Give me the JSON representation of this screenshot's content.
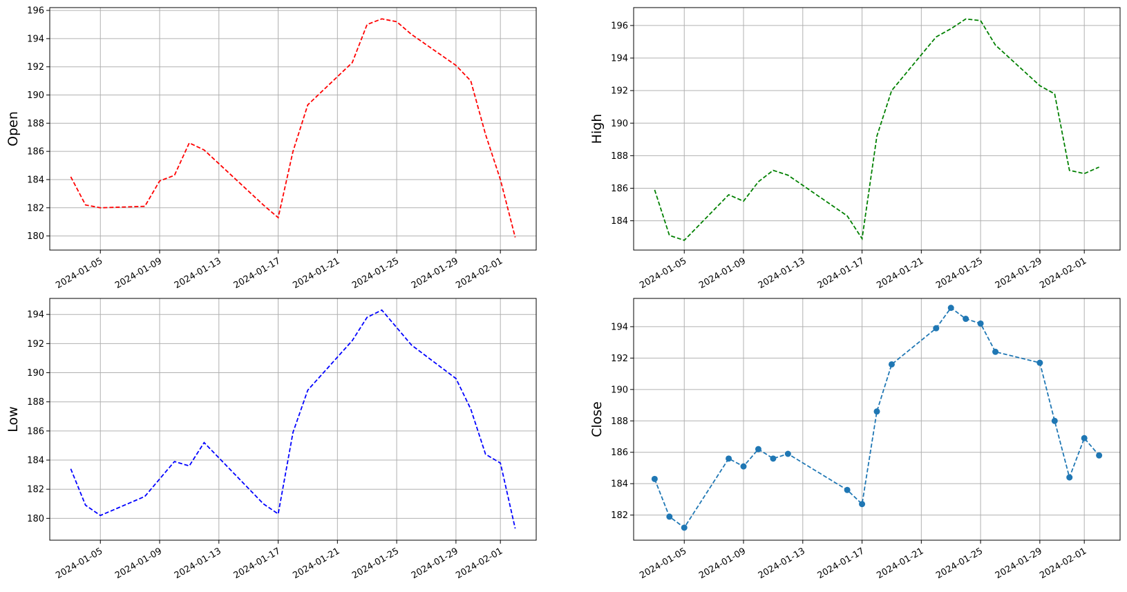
{
  "chart_data": [
    {
      "type": "line",
      "ylabel": "Open",
      "xlabel": "",
      "grid": true,
      "ylim": [
        179,
        196.2
      ],
      "yticks": [
        180,
        182,
        184,
        186,
        188,
        190,
        192,
        194,
        196
      ],
      "xticks": [
        "2024-01-05",
        "2024-01-09",
        "2024-01-13",
        "2024-01-17",
        "2024-01-21",
        "2024-01-25",
        "2024-01-29",
        "2024-02-01"
      ],
      "series": [
        {
          "color": "#ff0000",
          "linestyle": "dashed",
          "marker": "none",
          "x": [
            "2024-01-03",
            "2024-01-04",
            "2024-01-05",
            "2024-01-08",
            "2024-01-09",
            "2024-01-10",
            "2024-01-11",
            "2024-01-12",
            "2024-01-16",
            "2024-01-17",
            "2024-01-18",
            "2024-01-19",
            "2024-01-22",
            "2024-01-23",
            "2024-01-24",
            "2024-01-25",
            "2024-01-26",
            "2024-01-29",
            "2024-01-30",
            "2024-01-31",
            "2024-02-01",
            "2024-02-02"
          ],
          "y": [
            184.2,
            182.2,
            182.0,
            182.1,
            183.9,
            184.3,
            186.6,
            186.1,
            182.2,
            181.3,
            186.0,
            189.3,
            192.3,
            195.0,
            195.4,
            195.2,
            194.3,
            192.1,
            191.0,
            187.2,
            184.0,
            179.9
          ]
        }
      ]
    },
    {
      "type": "line",
      "ylabel": "High",
      "xlabel": "",
      "grid": true,
      "ylim": [
        182.2,
        197.1
      ],
      "yticks": [
        184,
        186,
        188,
        190,
        192,
        194,
        196
      ],
      "xticks": [
        "2024-01-05",
        "2024-01-09",
        "2024-01-13",
        "2024-01-17",
        "2024-01-21",
        "2024-01-25",
        "2024-01-29",
        "2024-02-01"
      ],
      "series": [
        {
          "color": "#008000",
          "linestyle": "dashed",
          "marker": "none",
          "x": [
            "2024-01-03",
            "2024-01-04",
            "2024-01-05",
            "2024-01-08",
            "2024-01-09",
            "2024-01-10",
            "2024-01-11",
            "2024-01-12",
            "2024-01-16",
            "2024-01-17",
            "2024-01-18",
            "2024-01-19",
            "2024-01-22",
            "2024-01-23",
            "2024-01-24",
            "2024-01-25",
            "2024-01-26",
            "2024-01-29",
            "2024-01-30",
            "2024-01-31",
            "2024-02-01",
            "2024-02-02"
          ],
          "y": [
            185.9,
            183.1,
            182.8,
            185.6,
            185.2,
            186.4,
            187.1,
            186.8,
            184.3,
            182.9,
            189.2,
            192.0,
            195.3,
            195.8,
            196.4,
            196.3,
            194.8,
            192.3,
            191.8,
            187.1,
            186.9,
            187.3
          ]
        }
      ]
    },
    {
      "type": "line",
      "ylabel": "Low",
      "xlabel": "",
      "grid": true,
      "ylim": [
        178.5,
        195.1
      ],
      "yticks": [
        180,
        182,
        184,
        186,
        188,
        190,
        192,
        194
      ],
      "xticks": [
        "2024-01-05",
        "2024-01-09",
        "2024-01-13",
        "2024-01-17",
        "2024-01-21",
        "2024-01-25",
        "2024-01-29",
        "2024-02-01"
      ],
      "series": [
        {
          "color": "#0000ff",
          "linestyle": "dashed",
          "marker": "none",
          "x": [
            "2024-01-03",
            "2024-01-04",
            "2024-01-05",
            "2024-01-08",
            "2024-01-09",
            "2024-01-10",
            "2024-01-11",
            "2024-01-12",
            "2024-01-16",
            "2024-01-17",
            "2024-01-18",
            "2024-01-19",
            "2024-01-22",
            "2024-01-23",
            "2024-01-24",
            "2024-01-25",
            "2024-01-26",
            "2024-01-29",
            "2024-01-30",
            "2024-01-31",
            "2024-02-01",
            "2024-02-02"
          ],
          "y": [
            183.4,
            180.9,
            180.2,
            181.5,
            182.7,
            183.9,
            183.6,
            185.2,
            181.0,
            180.3,
            185.9,
            188.8,
            192.2,
            193.8,
            194.3,
            193.1,
            191.9,
            189.6,
            187.5,
            184.4,
            183.8,
            179.3
          ]
        }
      ]
    },
    {
      "type": "line",
      "ylabel": "Close",
      "xlabel": "",
      "grid": true,
      "ylim": [
        180.4,
        195.8
      ],
      "yticks": [
        182,
        184,
        186,
        188,
        190,
        192,
        194
      ],
      "xticks": [
        "2024-01-05",
        "2024-01-09",
        "2024-01-13",
        "2024-01-17",
        "2024-01-21",
        "2024-01-25",
        "2024-01-29",
        "2024-02-01"
      ],
      "series": [
        {
          "color": "#1f77b4",
          "linestyle": "dashed",
          "marker": "circle",
          "x": [
            "2024-01-03",
            "2024-01-04",
            "2024-01-05",
            "2024-01-08",
            "2024-01-09",
            "2024-01-10",
            "2024-01-11",
            "2024-01-12",
            "2024-01-16",
            "2024-01-17",
            "2024-01-18",
            "2024-01-19",
            "2024-01-22",
            "2024-01-23",
            "2024-01-24",
            "2024-01-25",
            "2024-01-26",
            "2024-01-29",
            "2024-01-30",
            "2024-01-31",
            "2024-02-01",
            "2024-02-02"
          ],
          "y": [
            184.3,
            181.9,
            181.2,
            185.6,
            185.1,
            186.2,
            185.6,
            185.9,
            183.6,
            182.7,
            188.6,
            191.6,
            193.9,
            195.2,
            194.5,
            194.2,
            192.4,
            191.7,
            188.0,
            184.4,
            186.9,
            185.8
          ]
        }
      ]
    }
  ]
}
